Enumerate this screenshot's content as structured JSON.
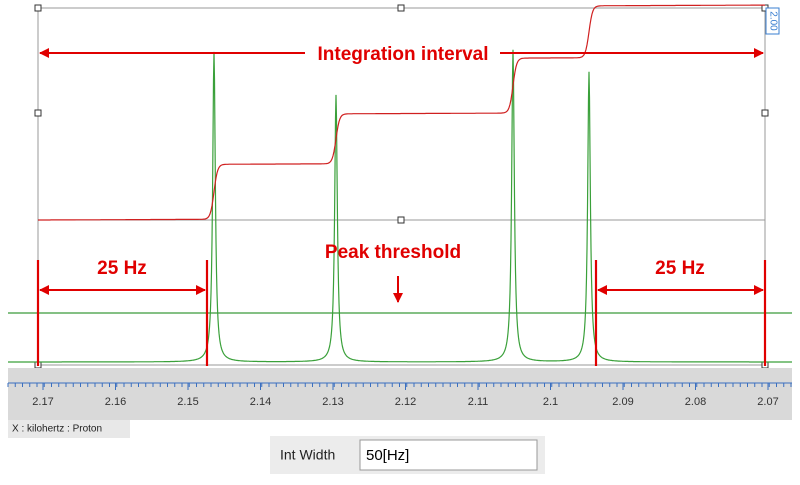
{
  "annotations": {
    "integration_interval": "Integration interval",
    "peak_threshold": "Peak threshold",
    "left_width": "25 Hz",
    "right_width": "25 Hz"
  },
  "integral_label": "2.00",
  "axis": {
    "ticks": [
      "2.17",
      "2.16",
      "2.15",
      "2.14",
      "2.13",
      "2.12",
      "2.11",
      "2.1",
      "2.09",
      "2.08",
      "2.07"
    ],
    "label": "X : kilohertz : Proton"
  },
  "int_width": {
    "label": "Int Width",
    "value": "50[Hz]"
  }
}
